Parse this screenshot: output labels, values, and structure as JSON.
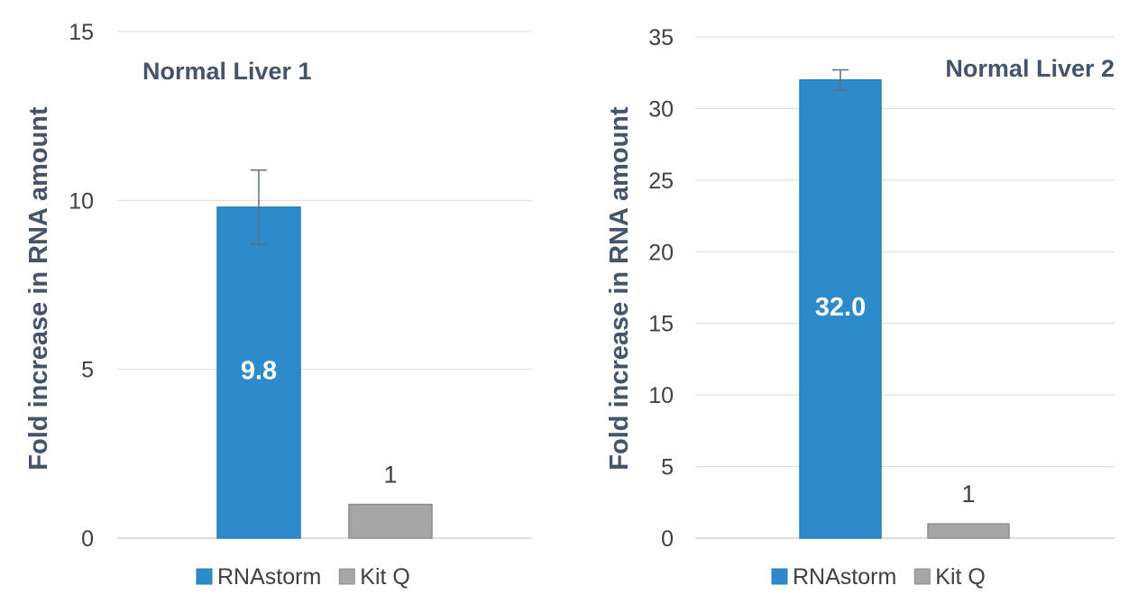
{
  "chart_data": [
    {
      "type": "bar",
      "title": "Normal Liver 1",
      "ylabel": "Fold increase in RNA amount",
      "ylim": [
        0,
        15
      ],
      "yticks": [
        0,
        5,
        10,
        15
      ],
      "grid": true,
      "legend_position": "bottom",
      "series": [
        {
          "name": "RNAstorm",
          "value": 9.8,
          "label": "9.8",
          "error": 1.1,
          "color": "#2e8bcb"
        },
        {
          "name": "Kit Q",
          "value": 1,
          "label": "1",
          "color": "#a6a6a6"
        }
      ]
    },
    {
      "type": "bar",
      "title": "Normal Liver 2",
      "ylabel": "Fold increase in RNA amount",
      "ylim": [
        0,
        35
      ],
      "yticks": [
        0,
        5,
        10,
        15,
        20,
        25,
        30,
        35
      ],
      "grid": true,
      "legend_position": "bottom",
      "series": [
        {
          "name": "RNAstorm",
          "value": 32.0,
          "label": "32.0",
          "error": 0.7,
          "color": "#2e8bcb"
        },
        {
          "name": "Kit Q",
          "value": 1,
          "label": "1",
          "color": "#a6a6a6"
        }
      ]
    }
  ]
}
